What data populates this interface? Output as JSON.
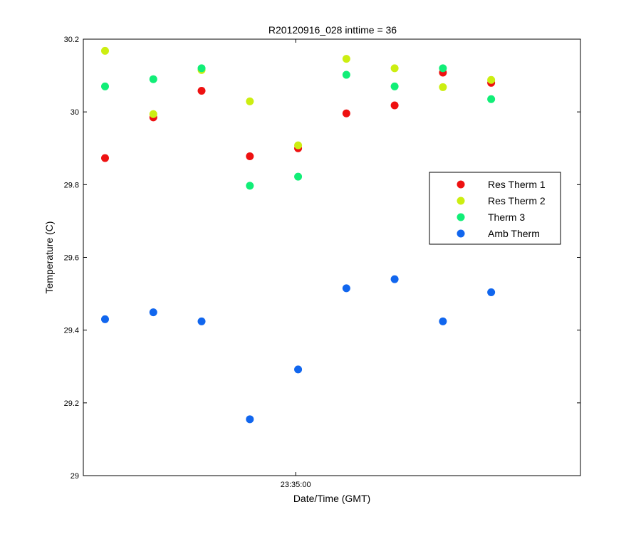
{
  "chart_data": {
    "type": "scatter",
    "title": "R20120916_028 inttime = 36",
    "xlabel": "Date/Time (GMT)",
    "ylabel": "Temperature (C)",
    "ylim": [
      29,
      30.2
    ],
    "xlim": [
      0,
      10.3
    ],
    "y_ticks": [
      29,
      29.2,
      29.4,
      29.6,
      29.8,
      30,
      30.2
    ],
    "y_tick_labels": [
      "29",
      "29.2",
      "29.4",
      "29.6",
      "29.8",
      "30",
      "30.2"
    ],
    "x_ticks": [
      4.4
    ],
    "x_tick_labels": [
      "23:35:00"
    ],
    "grid": false,
    "legend_position": "right",
    "x": [
      0.45,
      1.45,
      2.45,
      3.45,
      4.45,
      5.45,
      6.45,
      7.45,
      8.45
    ],
    "series": [
      {
        "name": "Res Therm 1",
        "color": "#ee1111",
        "values": [
          29.873,
          29.985,
          30.058,
          29.878,
          29.9,
          29.996,
          30.018,
          30.108,
          30.08
        ]
      },
      {
        "name": "Res Therm 2",
        "color": "#ccee11",
        "values": [
          30.168,
          29.994,
          30.115,
          30.029,
          29.908,
          30.146,
          30.12,
          30.068,
          30.088
        ]
      },
      {
        "name": "Therm 3",
        "color": "#11ee77",
        "values": [
          30.07,
          30.09,
          30.12,
          29.797,
          29.822,
          30.102,
          30.07,
          30.12,
          30.035
        ]
      },
      {
        "name": "Amb Therm",
        "color": "#1166ee",
        "values": [
          29.43,
          29.449,
          29.424,
          29.155,
          29.292,
          29.515,
          29.54,
          29.424,
          29.504
        ]
      }
    ]
  }
}
